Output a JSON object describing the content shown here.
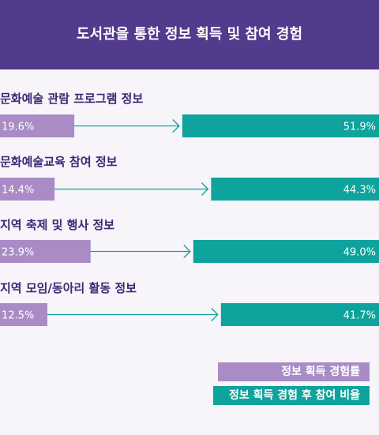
{
  "title": "도서관을 통한 정보 획득 및 참여 경험",
  "colors": {
    "header": "#523a8c",
    "series_a": "#a98cc6",
    "series_b": "#0ea39c",
    "arrow": "#0ea39c",
    "label": "#3a2872"
  },
  "chart_data": {
    "type": "bar",
    "title": "도서관을 통한 정보 획득 및 참여 경험",
    "categories": [
      "문화예술 관람 프로그램 정보",
      "문화예술교육 참여 정보",
      "지역 축제 및 행사 정보",
      "지역 모임/동아리 활동 정보"
    ],
    "series": [
      {
        "name": "정보 획득 경험률",
        "values": [
          19.6,
          14.4,
          23.9,
          12.5
        ],
        "labels": [
          "19.6%",
          "14.4%",
          "23.9%",
          "12.5%"
        ]
      },
      {
        "name": "정보 획득 경험 후 참여 비율",
        "values": [
          51.9,
          44.3,
          49.0,
          41.7
        ],
        "labels": [
          "51.9%",
          "44.3%",
          "49.0%",
          "41.7%"
        ]
      }
    ],
    "ylim": [
      0,
      100
    ],
    "legend": "bottom-right"
  }
}
